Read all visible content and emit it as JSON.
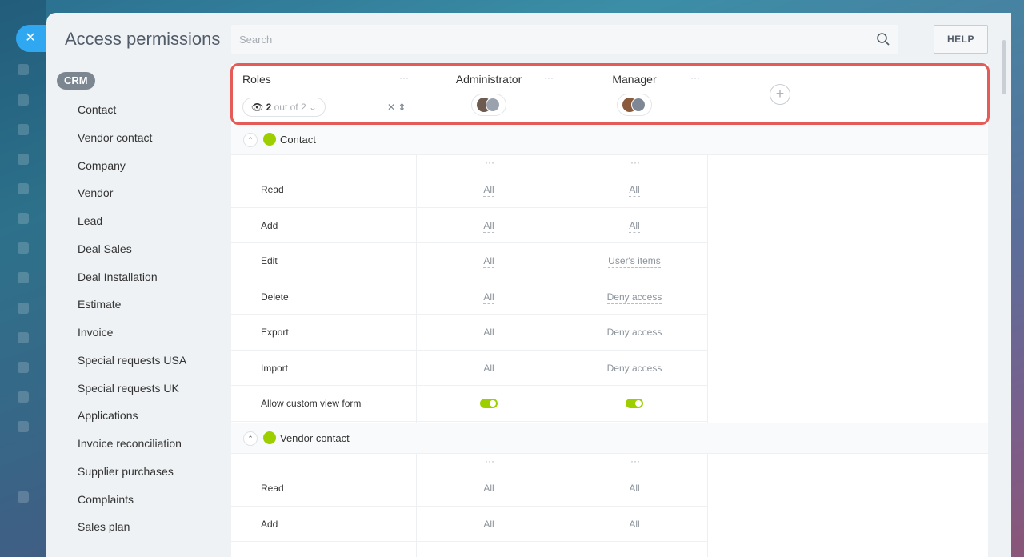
{
  "header": {
    "title": "Access permissions",
    "search_placeholder": "Search",
    "help_label": "HELP",
    "close_label": "✕"
  },
  "sidebar": {
    "crm_label": "CRM",
    "items": [
      {
        "label": "Contact"
      },
      {
        "label": "Vendor contact"
      },
      {
        "label": "Company"
      },
      {
        "label": "Vendor"
      },
      {
        "label": "Lead"
      },
      {
        "label": "Deal Sales"
      },
      {
        "label": "Deal Installation"
      },
      {
        "label": "Estimate"
      },
      {
        "label": "Invoice"
      },
      {
        "label": "Special requests USA"
      },
      {
        "label": "Special requests UK"
      },
      {
        "label": "Applications"
      },
      {
        "label": "Invoice reconciliation"
      },
      {
        "label": "Supplier purchases"
      },
      {
        "label": "Complaints"
      },
      {
        "label": "Sales plan"
      }
    ]
  },
  "table": {
    "roles_label": "Roles",
    "filter": {
      "count": "2",
      "suffix": "out of 2"
    },
    "columns": [
      {
        "title": "Administrator"
      },
      {
        "title": "Manager"
      }
    ],
    "more_label": "···",
    "add_role_label": "+",
    "sections": [
      {
        "title": "Contact",
        "rows": [
          {
            "label": "Read",
            "values": [
              "All",
              "All"
            ]
          },
          {
            "label": "Add",
            "values": [
              "All",
              "All"
            ]
          },
          {
            "label": "Edit",
            "values": [
              "All",
              "User's items"
            ]
          },
          {
            "label": "Delete",
            "values": [
              "All",
              "Deny access"
            ]
          },
          {
            "label": "Export",
            "values": [
              "All",
              "Deny access"
            ]
          },
          {
            "label": "Import",
            "values": [
              "All",
              "Deny access"
            ]
          },
          {
            "label": "Allow custom view form",
            "toggle": [
              true,
              true
            ]
          }
        ]
      },
      {
        "title": "Vendor contact",
        "rows": [
          {
            "label": "Read",
            "values": [
              "All",
              "All"
            ]
          },
          {
            "label": "Add",
            "values": [
              "All",
              "All"
            ]
          }
        ]
      }
    ]
  },
  "colors": {
    "accent_blue": "#2fa8f1",
    "toggle_green": "#9dcf00",
    "highlight_red": "#e45b57"
  }
}
